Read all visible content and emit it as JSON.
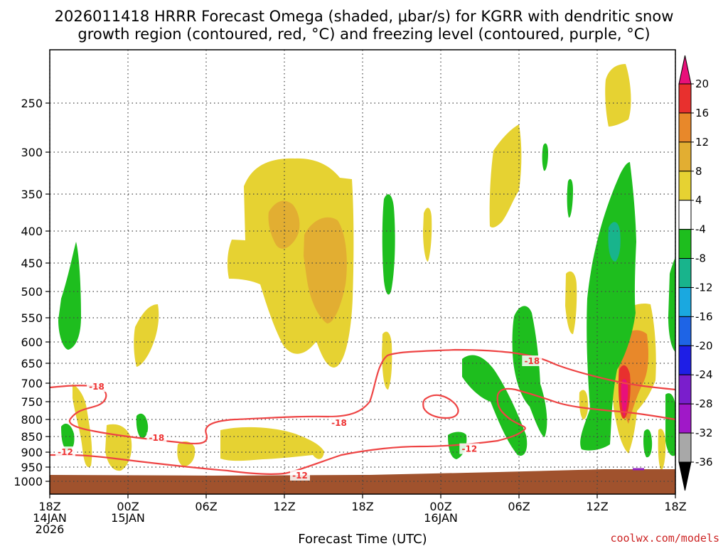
{
  "chart_data": {
    "type": "contour",
    "title_line1": "2026011418 HRRR Forecast Omega (shaded, μbar/s) for KGRR with dendritic snow",
    "title_line2": "growth region (contoured, red, °C) and freezing level (contoured, purple, °C)",
    "xlabel": "Forecast Time (UTC)",
    "credit": "coolwx.com/models",
    "x_range_hours": [
      0,
      48
    ],
    "y_reversed": true,
    "y_ticks": [
      250,
      300,
      350,
      400,
      450,
      500,
      550,
      600,
      650,
      700,
      750,
      800,
      850,
      900,
      950,
      1000
    ],
    "x_ticks": [
      {
        "hour": 0,
        "l1": "18Z",
        "l2": "14JAN",
        "l3": "2026"
      },
      {
        "hour": 6,
        "l1": "00Z",
        "l2": "15JAN",
        "l3": ""
      },
      {
        "hour": 12,
        "l1": "06Z",
        "l2": "",
        "l3": ""
      },
      {
        "hour": 18,
        "l1": "12Z",
        "l2": "",
        "l3": ""
      },
      {
        "hour": 24,
        "l1": "18Z",
        "l2": "",
        "l3": ""
      },
      {
        "hour": 30,
        "l1": "00Z",
        "l2": "16JAN",
        "l3": ""
      },
      {
        "hour": 36,
        "l1": "06Z",
        "l2": "",
        "l3": ""
      },
      {
        "hour": 42,
        "l1": "12Z",
        "l2": "",
        "l3": ""
      },
      {
        "hour": 48,
        "l1": "18Z",
        "l2": "",
        "l3": ""
      }
    ],
    "colorbar": {
      "labels": [
        "20",
        "16",
        "12",
        "8",
        "4",
        "-4",
        "-8",
        "-12",
        "-16",
        "-20",
        "-24",
        "-28",
        "-32",
        "-36"
      ],
      "colors": [
        "#e8107a",
        "#e8302e",
        "#e8882a",
        "#e2ae32",
        "#e6d232",
        "#ffffff",
        "#1ebe1e",
        "#18b48c",
        "#1aa8e0",
        "#1e64e6",
        "#1e1ee6",
        "#7a1ecc",
        "#a018c8",
        "#a8a8a8",
        "#000000"
      ]
    },
    "contour_labels": [
      {
        "hour": 3.6,
        "p": 710,
        "text": "-18"
      },
      {
        "hour": 8.2,
        "p": 855,
        "text": "-18"
      },
      {
        "hour": 22.2,
        "p": 810,
        "text": "-18"
      },
      {
        "hour": 37.0,
        "p": 645,
        "text": "-18"
      },
      {
        "hour": 1.2,
        "p": 900,
        "text": "-12"
      },
      {
        "hour": 19.2,
        "p": 980,
        "text": "-12"
      },
      {
        "hour": 32.2,
        "p": 890,
        "text": "-12"
      }
    ]
  }
}
